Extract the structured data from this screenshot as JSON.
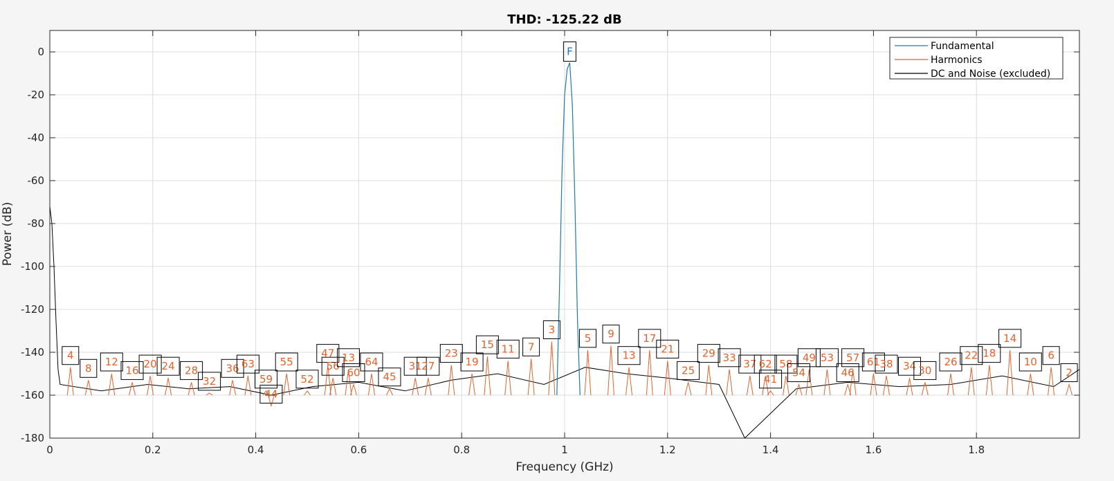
{
  "chart_data": {
    "type": "line",
    "title": "THD: -125.22 dB",
    "xlabel": "Frequency (GHz)",
    "ylabel": "Power (dB)",
    "xlim": [
      0,
      2.0
    ],
    "ylim": [
      -180,
      10
    ],
    "x_ticks": [
      0,
      0.2,
      0.4,
      0.6,
      0.8,
      1.0,
      1.2,
      1.4,
      1.6,
      1.8
    ],
    "x_tick_labels": [
      "0",
      "0.2",
      "0.4",
      "0.6",
      "0.8",
      "1",
      "1.2",
      "1.4",
      "1.6",
      "1.8"
    ],
    "y_ticks": [
      0,
      -20,
      -40,
      -60,
      -80,
      -100,
      -120,
      -140,
      -160,
      -180
    ],
    "y_tick_labels": [
      "0",
      "-20",
      "-40",
      "-60",
      "-80",
      "-100",
      "-120",
      "-140",
      "-160",
      "-180"
    ],
    "grid": true,
    "legend_position": "top-right",
    "legend": [
      "Fundamental",
      "Harmonics",
      "DC and Noise (excluded)"
    ],
    "colors": {
      "fundamental": "#1f77b4",
      "harmonics": "#e5622a",
      "noise": "#000000"
    },
    "series": [
      {
        "name": "Fundamental",
        "x": [
          0.985,
          0.99,
          0.995,
          1.0,
          1.005,
          1.01,
          1.015,
          1.02,
          1.025,
          1.03
        ],
        "y": [
          -160,
          -110,
          -55,
          -20,
          -8,
          -5,
          -25,
          -70,
          -125,
          -160
        ]
      },
      {
        "name": "Harmonics",
        "markers": [
          {
            "label": "F",
            "x": 1.01,
            "y": -5
          },
          {
            "label": "4",
            "x": 0.04,
            "y": -147
          },
          {
            "label": "8",
            "x": 0.075,
            "y": -153
          },
          {
            "label": "12",
            "x": 0.12,
            "y": -150
          },
          {
            "label": "16",
            "x": 0.16,
            "y": -154
          },
          {
            "label": "20",
            "x": 0.195,
            "y": -151
          },
          {
            "label": "24",
            "x": 0.23,
            "y": -152
          },
          {
            "label": "28",
            "x": 0.275,
            "y": -154
          },
          {
            "label": "32",
            "x": 0.31,
            "y": -159
          },
          {
            "label": "36",
            "x": 0.355,
            "y": -153
          },
          {
            "label": "63",
            "x": 0.385,
            "y": -151
          },
          {
            "label": "59",
            "x": 0.42,
            "y": -158
          },
          {
            "label": "44",
            "x": 0.43,
            "y": -165
          },
          {
            "label": "55",
            "x": 0.46,
            "y": -150
          },
          {
            "label": "52",
            "x": 0.5,
            "y": -158
          },
          {
            "label": "47",
            "x": 0.54,
            "y": -146
          },
          {
            "label": "56",
            "x": 0.55,
            "y": -152
          },
          {
            "label": "13",
            "x": 0.58,
            "y": -148
          },
          {
            "label": "60",
            "x": 0.59,
            "y": -155
          },
          {
            "label": "64",
            "x": 0.625,
            "y": -150
          },
          {
            "label": "45",
            "x": 0.66,
            "y": -157
          },
          {
            "label": "31",
            "x": 0.71,
            "y": -152
          },
          {
            "label": "27",
            "x": 0.735,
            "y": -152
          },
          {
            "label": "23",
            "x": 0.78,
            "y": -146
          },
          {
            "label": "19",
            "x": 0.82,
            "y": -150
          },
          {
            "label": "15",
            "x": 0.85,
            "y": -142
          },
          {
            "label": "11",
            "x": 0.89,
            "y": -144
          },
          {
            "label": "7",
            "x": 0.935,
            "y": -143
          },
          {
            "label": "3",
            "x": 0.975,
            "y": -135
          },
          {
            "label": "5",
            "x": 1.045,
            "y": -139
          },
          {
            "label": "9",
            "x": 1.09,
            "y": -137
          },
          {
            "label": "13",
            "x": 1.125,
            "y": -147
          },
          {
            "label": "17",
            "x": 1.165,
            "y": -139
          },
          {
            "label": "21",
            "x": 1.2,
            "y": -144
          },
          {
            "label": "25",
            "x": 1.24,
            "y": -154
          },
          {
            "label": "29",
            "x": 1.28,
            "y": -146
          },
          {
            "label": "33",
            "x": 1.32,
            "y": -148
          },
          {
            "label": "37",
            "x": 1.36,
            "y": -151
          },
          {
            "label": "62",
            "x": 1.39,
            "y": -151
          },
          {
            "label": "41",
            "x": 1.4,
            "y": -158
          },
          {
            "label": "58",
            "x": 1.43,
            "y": -151
          },
          {
            "label": "54",
            "x": 1.455,
            "y": -155
          },
          {
            "label": "49",
            "x": 1.475,
            "y": -148
          },
          {
            "label": "53",
            "x": 1.51,
            "y": -148
          },
          {
            "label": "46",
            "x": 1.55,
            "y": -155
          },
          {
            "label": "57",
            "x": 1.56,
            "y": -148
          },
          {
            "label": "61",
            "x": 1.6,
            "y": -150
          },
          {
            "label": "38",
            "x": 1.625,
            "y": -151
          },
          {
            "label": "34",
            "x": 1.67,
            "y": -152
          },
          {
            "label": "30",
            "x": 1.7,
            "y": -154
          },
          {
            "label": "26",
            "x": 1.75,
            "y": -150
          },
          {
            "label": "22",
            "x": 1.79,
            "y": -147
          },
          {
            "label": "18",
            "x": 1.825,
            "y": -146
          },
          {
            "label": "14",
            "x": 1.865,
            "y": -139
          },
          {
            "label": "10",
            "x": 1.905,
            "y": -150
          },
          {
            "label": "6",
            "x": 1.945,
            "y": -147
          },
          {
            "label": "2",
            "x": 1.98,
            "y": -155
          }
        ]
      },
      {
        "name": "DC and Noise (excluded)",
        "x": [
          0.0,
          0.004,
          0.008,
          0.012,
          0.016,
          0.02,
          0.1,
          0.19,
          0.27,
          0.35,
          0.43,
          0.51,
          0.6,
          0.69,
          0.78,
          0.87,
          0.96,
          1.04,
          1.12,
          1.2,
          1.3,
          1.35,
          1.45,
          1.55,
          1.65,
          1.75,
          1.85,
          1.95,
          2.0
        ],
        "y": [
          -72,
          -80,
          -100,
          -125,
          -148,
          -155,
          -158,
          -155,
          -157,
          -156,
          -160,
          -156,
          -154,
          -158,
          -153,
          -150,
          -155,
          -147,
          -150,
          -152,
          -155,
          -180,
          -157,
          -154,
          -156,
          -155,
          -151,
          -156,
          -148
        ]
      }
    ]
  }
}
